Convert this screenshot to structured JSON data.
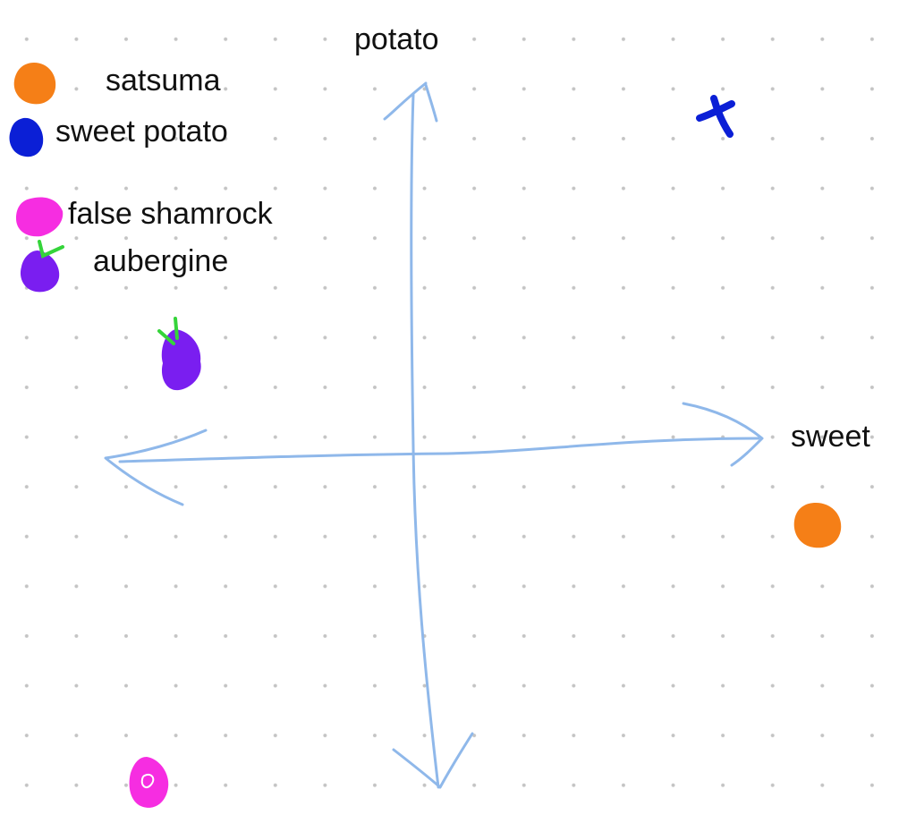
{
  "axes": {
    "vertical_label": "potato",
    "horizontal_label": "sweet"
  },
  "legend": [
    {
      "label": "satsuma",
      "color": "#f57f17",
      "icon": "orange-blob-icon"
    },
    {
      "label": "sweet potato",
      "color": "#0b1fd6",
      "icon": "blue-blob-icon"
    },
    {
      "label": "false shamrock",
      "color": "#f62de1",
      "icon": "magenta-blob-icon"
    },
    {
      "label": "aubergine",
      "color": "#7a1ef0",
      "icon": "purple-blob-icon"
    }
  ],
  "colors": {
    "axis": "#8fb8ea",
    "stem": "#35d43a",
    "background": "#ffffff",
    "grid_dot": "#c4c4c4",
    "text": "#111111"
  }
}
